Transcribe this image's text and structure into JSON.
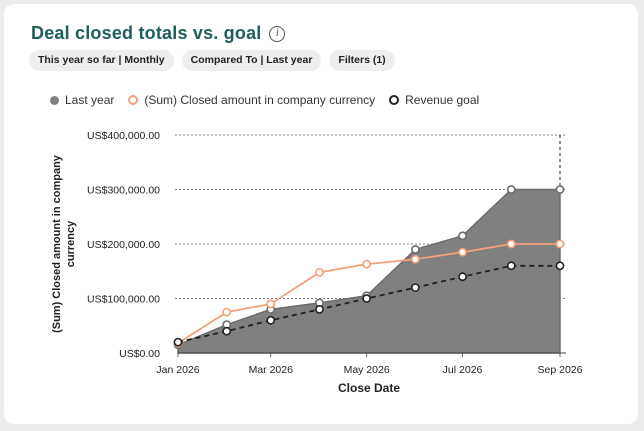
{
  "header": {
    "title": "Deal closed totals vs. goal",
    "info_icon": "info-circle-icon"
  },
  "filters": [
    {
      "label": "This year so far | Monthly"
    },
    {
      "label": "Compared To | Last year"
    },
    {
      "label": "Filters (1)"
    }
  ],
  "colors": {
    "title": "#1e5f5a",
    "last_year_fill": "#808080",
    "closed_line": "#f4a07a",
    "goal_line": "#222222"
  },
  "chart_data": {
    "type": "line",
    "xlabel": "Close Date",
    "ylabel": "(Sum) Closed amount in company currency",
    "x_tick_labels": [
      "Jan 2026",
      "Mar 2026",
      "May 2026",
      "Jul 2026",
      "Sep 2026"
    ],
    "y_tick_labels": [
      "US$0.00",
      "US$100,000.00",
      "US$200,000.00",
      "US$300,000.00",
      "US$400,000.00"
    ],
    "x_range": [
      "2026-01-01",
      "2026-09-01"
    ],
    "ylim": [
      0,
      400000
    ],
    "grid": "horizontal dashed",
    "legend_position": "top-left",
    "series": [
      {
        "name": "Last year",
        "style": "area",
        "points": [
          [
            "2026-01-01",
            15000
          ],
          [
            "2026-02-01",
            52000
          ],
          [
            "2026-03-01",
            80000
          ],
          [
            "2026-04-01",
            92000
          ],
          [
            "2026-05-01",
            105000
          ],
          [
            "2026-06-01",
            190000
          ],
          [
            "2026-07-01",
            215000
          ],
          [
            "2026-08-01",
            300000
          ],
          [
            "2026-09-01",
            300000
          ]
        ]
      },
      {
        "name": "(Sum) Closed amount in company currency",
        "style": "line",
        "points": [
          [
            "2026-01-01",
            18000
          ],
          [
            "2026-02-01",
            75000
          ],
          [
            "2026-03-01",
            90000
          ],
          [
            "2026-04-01",
            148000
          ],
          [
            "2026-05-01",
            163000
          ],
          [
            "2026-06-01",
            172000
          ],
          [
            "2026-07-01",
            185000
          ],
          [
            "2026-08-01",
            200000
          ],
          [
            "2026-09-01",
            200000
          ]
        ]
      },
      {
        "name": "Revenue goal",
        "style": "dashed",
        "points": [
          [
            "2026-01-01",
            20000
          ],
          [
            "2026-02-01",
            40000
          ],
          [
            "2026-03-01",
            60000
          ],
          [
            "2026-04-01",
            80000
          ],
          [
            "2026-05-01",
            100000
          ],
          [
            "2026-06-01",
            120000
          ],
          [
            "2026-07-01",
            140000
          ],
          [
            "2026-08-01",
            160000
          ],
          [
            "2026-09-01",
            160000
          ]
        ]
      }
    ]
  }
}
